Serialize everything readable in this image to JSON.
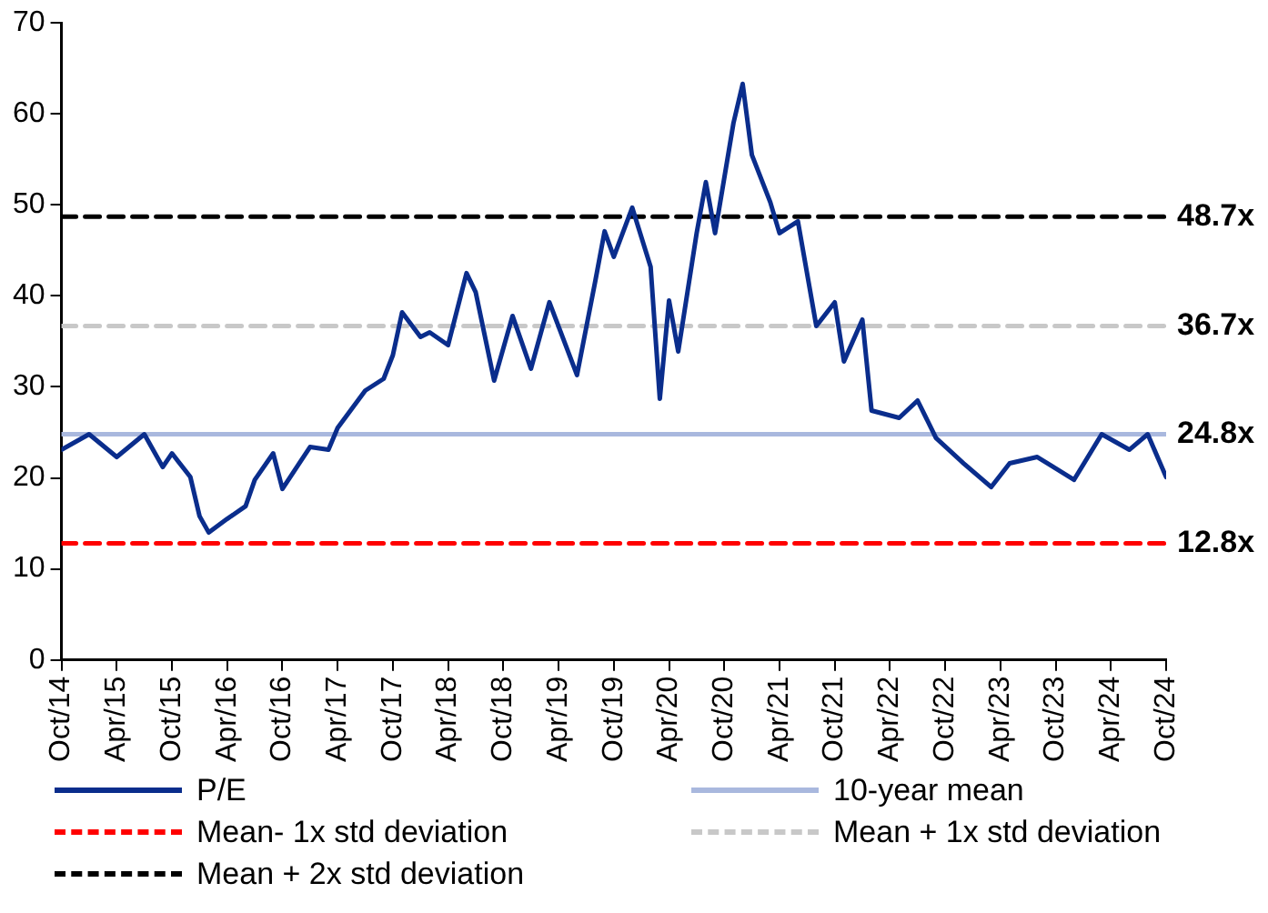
{
  "chart_data": {
    "type": "line",
    "x": [
      "2014-10",
      "2015-01",
      "2015-04",
      "2015-07",
      "2015-09",
      "2015-10",
      "2015-12",
      "2016-01",
      "2016-02",
      "2016-04",
      "2016-06",
      "2016-07",
      "2016-09",
      "2016-10",
      "2017-01",
      "2017-03",
      "2017-04",
      "2017-07",
      "2017-09",
      "2017-10",
      "2017-11",
      "2018-01",
      "2018-02",
      "2018-04",
      "2018-06",
      "2018-07",
      "2018-09",
      "2018-11",
      "2019-01",
      "2019-03",
      "2019-06",
      "2019-08",
      "2019-09",
      "2019-10",
      "2019-12",
      "2020-02",
      "2020-03",
      "2020-04",
      "2020-05",
      "2020-07",
      "2020-08",
      "2020-09",
      "2020-11",
      "2020-12",
      "2021-01",
      "2021-03",
      "2021-04",
      "2021-06",
      "2021-08",
      "2021-10",
      "2021-11",
      "2022-01",
      "2022-02",
      "2022-05",
      "2022-07",
      "2022-09",
      "2022-12",
      "2023-03",
      "2023-05",
      "2023-08",
      "2023-12",
      "2024-03",
      "2024-06",
      "2024-08",
      "2024-10"
    ],
    "series": [
      {
        "name": "P/E",
        "color": "#0a2d8c",
        "line_style": "solid",
        "values": [
          23.1,
          24.8,
          22.3,
          24.8,
          21.2,
          22.7,
          20.1,
          15.8,
          14.0,
          15.5,
          16.9,
          19.8,
          22.7,
          18.8,
          23.4,
          23.1,
          25.5,
          29.6,
          30.9,
          33.5,
          38.2,
          35.5,
          36.0,
          34.6,
          42.5,
          40.4,
          30.7,
          37.8,
          32.0,
          39.3,
          31.3,
          41.7,
          47.1,
          44.3,
          49.7,
          43.2,
          28.7,
          39.5,
          33.9,
          46.9,
          52.5,
          46.9,
          59.0,
          63.3,
          55.5,
          50.3,
          46.9,
          48.2,
          36.7,
          39.3,
          32.8,
          37.4,
          27.4,
          26.6,
          28.5,
          24.4,
          21.6,
          19.0,
          21.6,
          22.3,
          19.8,
          24.8,
          23.1,
          24.8,
          20.1
        ]
      },
      {
        "name": "10-year mean",
        "color": "#a9b8de",
        "line_style": "solid",
        "x": [
          "2014-10",
          "2024-10"
        ],
        "values": [
          24.8,
          24.8
        ],
        "value_labels": [
          null,
          "24.8x"
        ]
      },
      {
        "name": "Mean- 1x std deviation",
        "color": "#ff0000",
        "line_style": "dashed",
        "x": [
          "2014-10",
          "2024-10"
        ],
        "values": [
          12.8,
          12.8
        ],
        "value_labels": [
          null,
          "12.8x"
        ]
      },
      {
        "name": "Mean + 1x std deviation",
        "color": "#c8c8c8",
        "line_style": "dashed",
        "x": [
          "2014-10",
          "2024-10"
        ],
        "values": [
          36.7,
          36.7
        ],
        "value_labels": [
          null,
          "36.7x"
        ]
      },
      {
        "name": "Mean + 2x std deviation",
        "color": "#000000",
        "line_style": "dashed",
        "x": [
          "2014-10",
          "2024-10"
        ],
        "values": [
          48.7,
          48.7
        ],
        "value_labels": [
          null,
          "48.7x"
        ]
      }
    ],
    "xlim": [
      "2014-10",
      "2024-10"
    ],
    "xticks": [
      {
        "value": "2014-10",
        "label": "Oct/14"
      },
      {
        "value": "2015-04",
        "label": "Apr/15"
      },
      {
        "value": "2015-10",
        "label": "Oct/15"
      },
      {
        "value": "2016-04",
        "label": "Apr/16"
      },
      {
        "value": "2016-10",
        "label": "Oct/16"
      },
      {
        "value": "2017-04",
        "label": "Apr/17"
      },
      {
        "value": "2017-10",
        "label": "Oct/17"
      },
      {
        "value": "2018-04",
        "label": "Apr/18"
      },
      {
        "value": "2018-10",
        "label": "Oct/18"
      },
      {
        "value": "2019-04",
        "label": "Apr/19"
      },
      {
        "value": "2019-10",
        "label": "Oct/19"
      },
      {
        "value": "2020-04",
        "label": "Apr/20"
      },
      {
        "value": "2020-10",
        "label": "Oct/20"
      },
      {
        "value": "2021-04",
        "label": "Apr/21"
      },
      {
        "value": "2021-10",
        "label": "Oct/21"
      },
      {
        "value": "2022-04",
        "label": "Apr/22"
      },
      {
        "value": "2022-10",
        "label": "Oct/22"
      },
      {
        "value": "2023-04",
        "label": "Apr/23"
      },
      {
        "value": "2023-10",
        "label": "Oct/23"
      },
      {
        "value": "2024-04",
        "label": "Apr/24"
      },
      {
        "value": "2024-10",
        "label": "Oct/24"
      }
    ],
    "ylim": [
      0,
      70
    ],
    "yticks": [
      0,
      10,
      20,
      30,
      40,
      50,
      60,
      70
    ],
    "grid": false,
    "legend": "bottom",
    "marker": "none"
  }
}
